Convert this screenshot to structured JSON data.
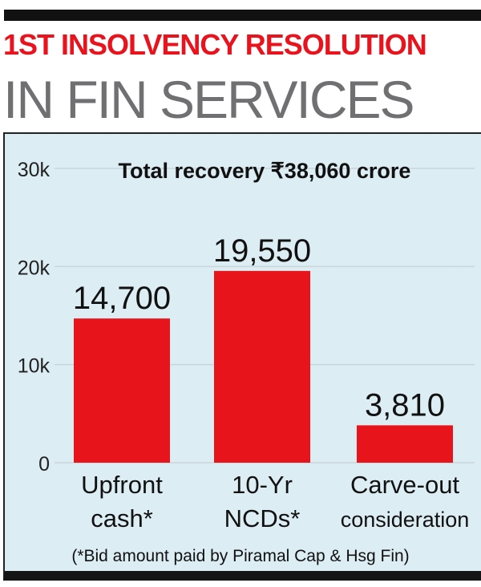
{
  "header": {
    "title_line1": "1ST INSOLVENCY RESOLUTION",
    "title_line2": "IN FIN SERVICES"
  },
  "chart_data": {
    "type": "bar",
    "title": "Total recovery ₹38,060 crore",
    "categories": [
      "Upfront cash*",
      "10-Yr NCDs*",
      "Carve-out consideration"
    ],
    "category_lines": [
      [
        "Upfront",
        "cash*"
      ],
      [
        "10-Yr",
        "NCDs*"
      ],
      [
        "Carve-out",
        "consideration"
      ]
    ],
    "values": [
      14700,
      19550,
      3810
    ],
    "data_labels": [
      "14,700",
      "19,550",
      "3,810"
    ],
    "yticks": [
      0,
      10000,
      20000,
      30000
    ],
    "ytick_labels": [
      "0",
      "10k",
      "20k",
      "30k"
    ],
    "ylim": [
      0,
      30000
    ],
    "grid": true,
    "bar_color": "#e8141c",
    "background": "#dcedf3",
    "footnote": "(*Bid amount paid by Piramal Cap & Hsg Fin)"
  }
}
